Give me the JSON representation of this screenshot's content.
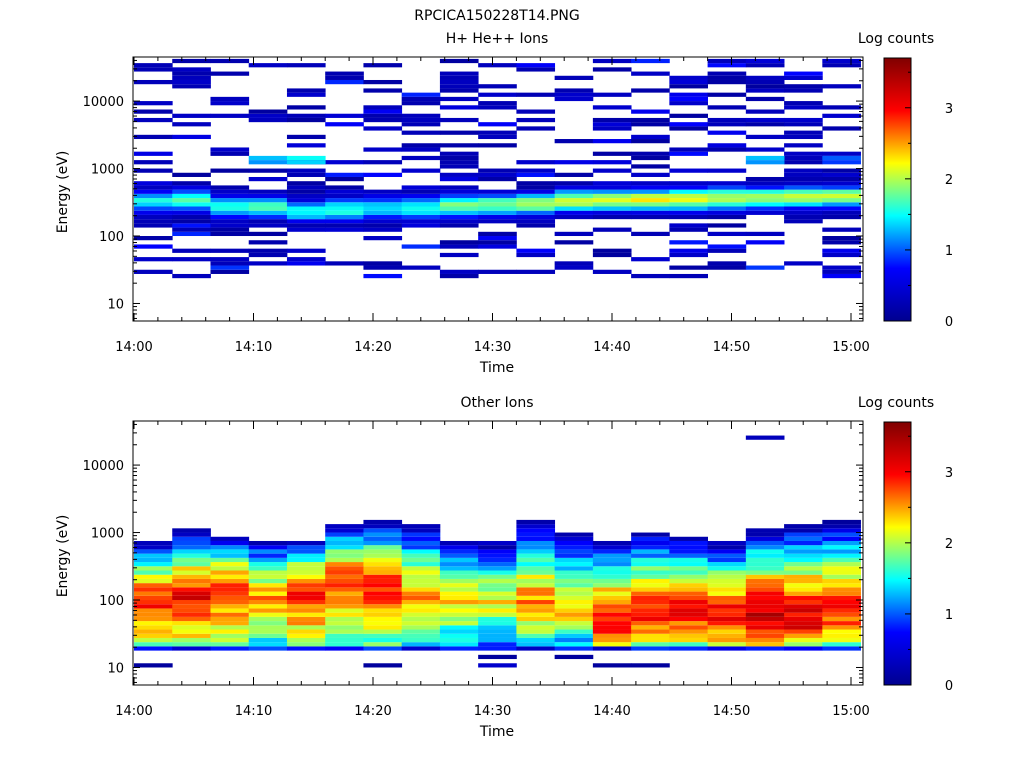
{
  "figure_title": "RPCICA150228T14.PNG",
  "colors": {
    "colormap": [
      "#00008f",
      "#0000ff",
      "#00ffff",
      "#ffff00",
      "#ff0000",
      "#800000"
    ],
    "background": "#ffffff"
  },
  "chart_data": [
    {
      "type": "heatmap",
      "title": "H+ He++ Ions",
      "xlabel": "Time",
      "ylabel": "Energy (eV)",
      "yscale": "log",
      "ylim": [
        5.5,
        45000
      ],
      "x_ticks": [
        "14:00",
        "14:10",
        "14:20",
        "14:30",
        "14:40",
        "14:50",
        "15:00"
      ],
      "y_ticks": [
        "10",
        "100",
        "1000",
        "10000"
      ],
      "colorbar": {
        "label": "Log counts",
        "range": [
          0,
          3.7
        ],
        "ticks": [
          "0",
          "1",
          "2",
          "3"
        ]
      },
      "time_bin_minutes": 3.2,
      "energy_channels_per_decade": 16,
      "time_bins": [
        "14:00",
        "14:03",
        "14:06",
        "14:09",
        "14:12",
        "14:16",
        "14:19",
        "14:22",
        "14:25",
        "14:28",
        "14:32",
        "14:35",
        "14:38",
        "14:41",
        "14:44",
        "14:48",
        "14:51",
        "14:54",
        "14:57"
      ],
      "band_peak_energy_eV": [
        330,
        330,
        270,
        270,
        230,
        250,
        260,
        260,
        280,
        290,
        300,
        330,
        340,
        340,
        350,
        360,
        370,
        380,
        380
      ],
      "band_peak_log_counts": [
        1.5,
        1.7,
        1.6,
        1.7,
        1.5,
        1.6,
        1.5,
        1.6,
        1.8,
        1.9,
        2.0,
        2.1,
        2.1,
        2.2,
        2.2,
        2.1,
        2.0,
        2.0,
        2.0
      ],
      "features": [
        {
          "time": "14:10",
          "energy_eV": 1500,
          "log_counts": 1.3
        },
        {
          "time": "14:13",
          "energy_eV": 1500,
          "log_counts": 1.5
        },
        {
          "time": "14:52",
          "energy_eV": 1500,
          "log_counts": 1.3
        },
        {
          "time": "14:56",
          "energy_eV": 1500,
          "log_counts": 1.0
        }
      ],
      "sparse_background_log_counts": [
        0.1,
        0.9
      ]
    },
    {
      "type": "heatmap",
      "title": "Other Ions",
      "xlabel": "Time",
      "ylabel": "Energy (eV)",
      "yscale": "log",
      "ylim": [
        5.5,
        45000
      ],
      "x_ticks": [
        "14:00",
        "14:10",
        "14:20",
        "14:30",
        "14:40",
        "14:50",
        "15:00"
      ],
      "y_ticks": [
        "10",
        "100",
        "1000",
        "10000"
      ],
      "colorbar": {
        "label": "Log counts",
        "range": [
          0,
          3.7
        ],
        "ticks": [
          "0",
          "1",
          "2",
          "3"
        ]
      },
      "time_bin_minutes": 3.2,
      "energy_channels_per_decade": 16,
      "time_bins": [
        "14:00",
        "14:03",
        "14:06",
        "14:09",
        "14:12",
        "14:16",
        "14:19",
        "14:22",
        "14:25",
        "14:28",
        "14:32",
        "14:35",
        "14:38",
        "14:41",
        "14:44",
        "14:48",
        "14:51",
        "14:54",
        "14:57"
      ],
      "band_lower_edge_eV": [
        18,
        18,
        18,
        18,
        18,
        18,
        18,
        18,
        18,
        18,
        18,
        18,
        18,
        18,
        18,
        18,
        18,
        18,
        18
      ],
      "band_upper_edge_eV": [
        700,
        1100,
        900,
        800,
        800,
        1300,
        1500,
        1300,
        800,
        700,
        1500,
        1000,
        800,
        1000,
        900,
        700,
        1100,
        1300,
        1500
      ],
      "band_peak_energy_eV": [
        90,
        100,
        130,
        90,
        120,
        170,
        150,
        100,
        90,
        90,
        80,
        60,
        40,
        50,
        60,
        50,
        50,
        45,
        60
      ],
      "band_peak_log_counts": [
        3.0,
        3.1,
        2.9,
        2.6,
        3.0,
        2.9,
        2.9,
        2.5,
        2.4,
        2.2,
        2.6,
        2.3,
        3.1,
        3.0,
        3.0,
        3.1,
        3.3,
        3.2,
        2.9
      ],
      "isolated_bins": [
        {
          "time": "14:00",
          "energy_eV": 10,
          "log_counts": 0.1
        },
        {
          "time": "14:20",
          "energy_eV": 10,
          "log_counts": 0.1
        },
        {
          "time": "14:29",
          "energy_eV": 15,
          "log_counts": 0.1
        },
        {
          "time": "14:30",
          "energy_eV": 10,
          "log_counts": 0.4
        },
        {
          "time": "14:36",
          "energy_eV": 15,
          "log_counts": 0.1
        },
        {
          "time": "14:39",
          "energy_eV": 10,
          "log_counts": 0.1
        },
        {
          "time": "14:42",
          "energy_eV": 10,
          "log_counts": 0.1
        },
        {
          "time": "14:50",
          "energy_eV": 24000,
          "log_counts": 0.3
        }
      ]
    }
  ]
}
